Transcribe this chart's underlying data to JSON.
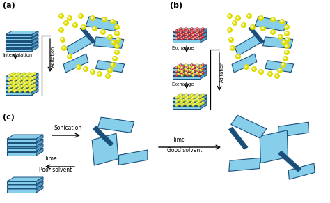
{
  "bg_color": "#ffffff",
  "lc": "#87CEEB",
  "dc": "#1a4f7a",
  "mc": "#5a9fc8",
  "yc": "#dddd00",
  "rc": "#cc2222",
  "label_a": "(a)",
  "label_b": "(b)",
  "label_c": "(c)"
}
